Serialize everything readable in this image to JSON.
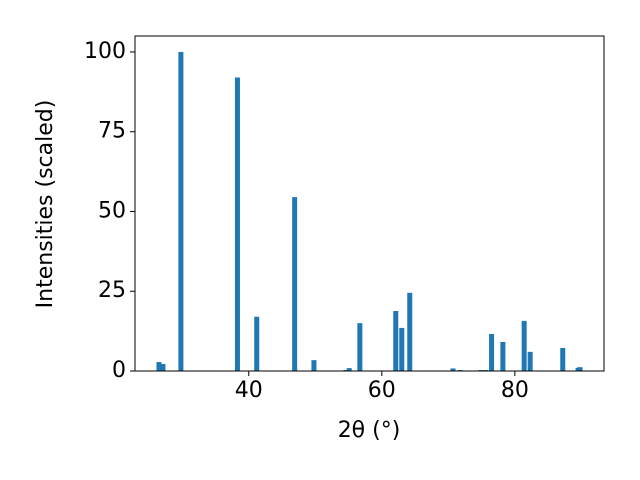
{
  "chart_data": {
    "type": "bar",
    "x_label": "2θ (°)",
    "y_label": "Intensities (scaled)",
    "x": [
      26.5,
      27.1,
      29.8,
      38.3,
      41.2,
      46.9,
      49.8,
      54.6,
      55.1,
      56.7,
      62.1,
      63.0,
      64.2,
      70.7,
      71.8,
      74.9,
      75.6,
      76.5,
      78.2,
      81.4,
      82.3,
      87.2,
      89.5,
      89.8
    ],
    "values": [
      2.8,
      2.2,
      100,
      92,
      17,
      54.5,
      3.4,
      0.3,
      0.9,
      15,
      18.8,
      13.5,
      24.5,
      0.8,
      0.3,
      0.3,
      0.3,
      11.6,
      9.1,
      15.7,
      6,
      7.2,
      1,
      1.2
    ],
    "color": "#1f77b4",
    "xlim": [
      22.9,
      93.4
    ],
    "xticks": [
      40,
      60,
      80
    ],
    "ylim": [
      0,
      105
    ],
    "yticks": [
      0,
      25,
      50,
      75,
      100
    ]
  }
}
